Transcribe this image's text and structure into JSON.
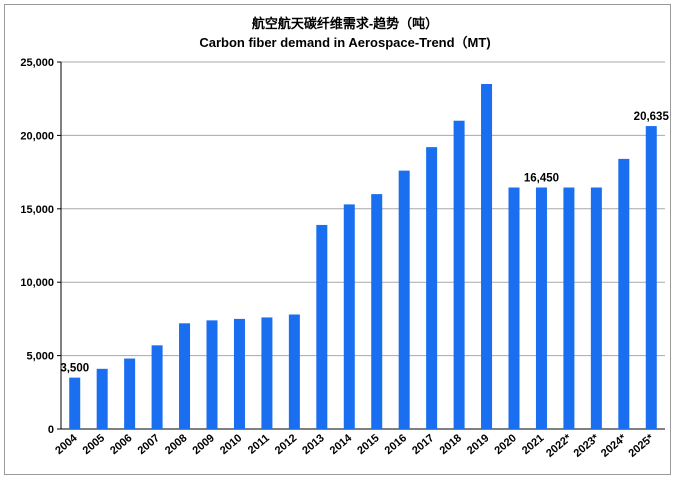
{
  "chart_data": {
    "type": "bar",
    "title": "航空航天碳纤维需求-趋势（吨）",
    "subtitle": "Carbon fiber demand in Aerospace-Trend（MT)",
    "xlabel": "",
    "ylabel": "",
    "categories": [
      "2004",
      "2005",
      "2006",
      "2007",
      "2008",
      "2009",
      "2010",
      "2011",
      "2012",
      "2013",
      "2014",
      "2015",
      "2016",
      "2017",
      "2018",
      "2019",
      "2020",
      "2021",
      "2022*",
      "2023*",
      "2024*",
      "2025*"
    ],
    "values": [
      3500,
      4100,
      4800,
      5700,
      7200,
      7400,
      7500,
      7600,
      7800,
      13900,
      15300,
      16000,
      17600,
      19200,
      21000,
      23500,
      16450,
      16450,
      16450,
      16450,
      18400,
      20635
    ],
    "ylim": [
      0,
      25000
    ],
    "yticks": [
      0,
      5000,
      10000,
      15000,
      20000,
      25000
    ],
    "ytick_labels": [
      "0",
      "5,000",
      "10,000",
      "15,000",
      "20,000",
      "25,000"
    ],
    "grid": true,
    "bar_color": "#1a6ef0",
    "annotations": [
      {
        "category": "2004",
        "label": "3,500"
      },
      {
        "category": "2021",
        "label": "16,450"
      },
      {
        "category": "2025*",
        "label": "20,635"
      }
    ]
  }
}
